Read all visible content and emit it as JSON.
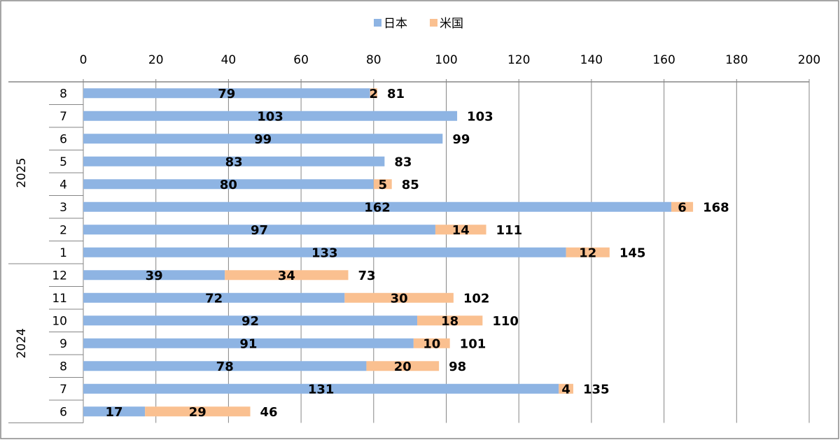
{
  "chart_data": {
    "type": "bar",
    "orientation": "horizontal",
    "stacked": true,
    "title": "",
    "xlabel": "",
    "ylabel": "",
    "xlim": [
      0,
      200
    ],
    "x_ticks": [
      0,
      20,
      40,
      60,
      80,
      100,
      120,
      140,
      160,
      180,
      200
    ],
    "grid": true,
    "legend_position": "top-right",
    "groups": [
      {
        "year": "2025",
        "months": [
          "8",
          "7",
          "6",
          "5",
          "4",
          "3",
          "2",
          "1"
        ]
      },
      {
        "year": "2024",
        "months": [
          "12",
          "11",
          "10",
          "9",
          "8",
          "7",
          "6"
        ]
      }
    ],
    "categories": [
      "2025-8",
      "2025-7",
      "2025-6",
      "2025-5",
      "2025-4",
      "2025-3",
      "2025-2",
      "2025-1",
      "2024-12",
      "2024-11",
      "2024-10",
      "2024-9",
      "2024-8",
      "2024-7",
      "2024-6"
    ],
    "series": [
      {
        "name": "日本",
        "color": "#8EB4E3",
        "values": [
          79,
          103,
          99,
          83,
          80,
          162,
          97,
          133,
          39,
          72,
          92,
          91,
          78,
          131,
          17
        ]
      },
      {
        "name": "米国",
        "color": "#FAC090",
        "values": [
          2,
          0,
          0,
          0,
          5,
          6,
          14,
          12,
          34,
          30,
          18,
          10,
          20,
          4,
          29
        ]
      }
    ],
    "totals": [
      81,
      103,
      99,
      83,
      85,
      168,
      111,
      145,
      73,
      102,
      110,
      101,
      98,
      135,
      46
    ]
  }
}
